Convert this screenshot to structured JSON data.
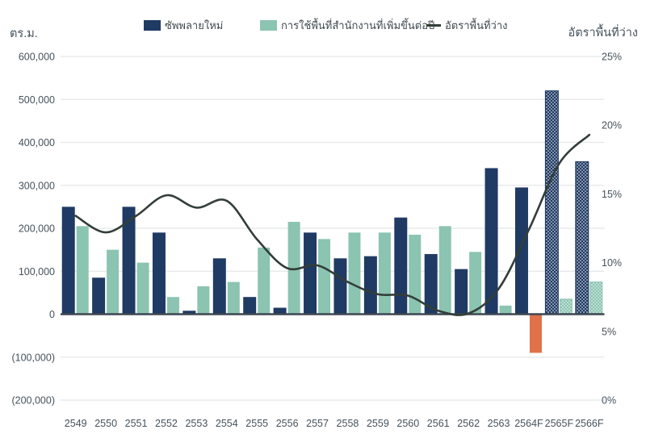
{
  "axes": {
    "left_title": "ตร.ม.",
    "right_title": "อัตราพื้นที่ว่าง"
  },
  "legend": [
    {
      "label": "ซัพพลายใหม่",
      "color": "#1f3a63",
      "swatch": "square"
    },
    {
      "label": "การใช้พื้นที่สำนักงานที่เพิ่มขึ้นต่อปี",
      "color": "#8bc4b1",
      "swatch": "square"
    },
    {
      "label": "อัตราพื้นที่ว่าง",
      "color": "#333e38",
      "swatch": "line"
    }
  ],
  "colors": {
    "navy": "#1f3a63",
    "teal": "#8bc4b1",
    "orange": "#e0714a",
    "line": "#333e38",
    "text": "#44525c",
    "gridline": "#e4e6e8",
    "axis_line": "#3d4751",
    "background": "#ffffff"
  },
  "chart_data": {
    "type": "bar",
    "subtype": "grouped bars with overlay line (combo chart)",
    "title": "",
    "xlabel": "",
    "ylabel_left": "ตร.ม.",
    "ylabel_right": "อัตราพื้นที่ว่าง",
    "legend_position": "top",
    "grid": "horizontal light-gray lines at left-axis ticks, dark zero baseline",
    "categories": [
      "2549",
      "2550",
      "2551",
      "2552",
      "2553",
      "2554",
      "2555",
      "2556",
      "2557",
      "2558",
      "2559",
      "2560",
      "2561",
      "2562",
      "2563",
      "2564F",
      "2565F",
      "2566F"
    ],
    "patterned_categories": [
      "2565F",
      "2566F"
    ],
    "series": [
      {
        "name": "ซัพพลายใหม่",
        "type": "bar",
        "axis": "left",
        "color": "#1f3a63",
        "values": [
          250000,
          85000,
          250000,
          190000,
          8000,
          130000,
          40000,
          15000,
          190000,
          130000,
          135000,
          225000,
          140000,
          105000,
          340000,
          295000,
          520000,
          355000
        ]
      },
      {
        "name": "การใช้พื้นที่สำนักงานที่เพิ่มขึ้นต่อปี",
        "type": "bar",
        "axis": "left",
        "color": "#8bc4b1",
        "negative_color": "#e0714a",
        "values": [
          205000,
          150000,
          120000,
          40000,
          65000,
          75000,
          155000,
          215000,
          175000,
          190000,
          190000,
          185000,
          205000,
          145000,
          20000,
          -90000,
          35000,
          75000
        ]
      },
      {
        "name": "อัตราพื้นที่ว่าง",
        "type": "line",
        "axis": "right",
        "color": "#333e38",
        "unit": "%",
        "values": [
          13.4,
          12.2,
          13.4,
          14.9,
          14.0,
          14.5,
          11.7,
          9.6,
          9.8,
          8.6,
          7.7,
          7.6,
          6.5,
          6.3,
          8.1,
          12.4,
          17.2,
          19.3
        ]
      }
    ],
    "left_axis": {
      "title": "ตร.ม.",
      "min": -200000,
      "max": 600000,
      "tick_labels": [
        "600,000",
        "500,000",
        "400,000",
        "300,000",
        "200,000",
        "100,000",
        "0",
        "(100,000)",
        "(200,000)"
      ],
      "tick_values": [
        600000,
        500000,
        400000,
        300000,
        200000,
        100000,
        0,
        -100000,
        -200000
      ]
    },
    "right_axis": {
      "title": "อัตราพื้นที่ว่าง",
      "min": 0,
      "max": 25,
      "tick_labels": [
        "25%",
        "20%",
        "15%",
        "10%",
        "5%",
        "0%"
      ],
      "tick_values": [
        25,
        20,
        15,
        10,
        5,
        0
      ]
    }
  }
}
